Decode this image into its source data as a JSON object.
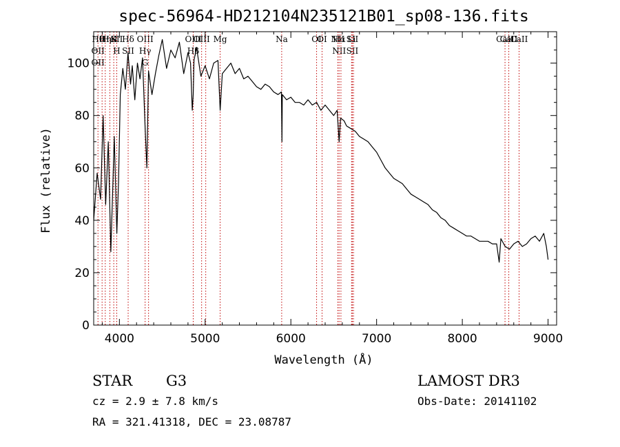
{
  "chart_data": {
    "type": "line",
    "title": "spec-56964-HD212104N235121B01_sp08-136.fits",
    "xlabel": "Wavelength (Å)",
    "ylabel": "Flux (relative)",
    "xlim": [
      3700,
      9100
    ],
    "ylim": [
      0,
      112
    ],
    "xticks": [
      4000,
      5000,
      6000,
      7000,
      8000,
      9000
    ],
    "yticks": [
      0,
      20,
      40,
      60,
      80,
      100
    ],
    "line_color": "#000000",
    "marker_color": "#c00000",
    "grid": false,
    "series": [
      {
        "name": "spectrum",
        "x": [
          3700,
          3740,
          3780,
          3810,
          3840,
          3870,
          3900,
          3940,
          3970,
          3990,
          4010,
          4040,
          4070,
          4100,
          4130,
          4150,
          4180,
          4210,
          4240,
          4270,
          4300,
          4320,
          4340,
          4380,
          4420,
          4460,
          4500,
          4550,
          4600,
          4650,
          4700,
          4750,
          4800,
          4830,
          4850,
          4861,
          4870,
          4900,
          4950,
          5000,
          5050,
          5100,
          5150,
          5175,
          5200,
          5250,
          5300,
          5350,
          5400,
          5450,
          5500,
          5550,
          5600,
          5650,
          5700,
          5750,
          5800,
          5850,
          5890,
          5896,
          5900,
          5950,
          6000,
          6050,
          6100,
          6150,
          6200,
          6250,
          6300,
          6350,
          6400,
          6450,
          6500,
          6540,
          6563,
          6580,
          6620,
          6650,
          6700,
          6750,
          6800,
          6850,
          6900,
          6950,
          7000,
          7050,
          7100,
          7150,
          7200,
          7250,
          7300,
          7350,
          7400,
          7450,
          7500,
          7550,
          7600,
          7650,
          7700,
          7750,
          7800,
          7850,
          7900,
          7950,
          8000,
          8050,
          8100,
          8150,
          8200,
          8250,
          8300,
          8350,
          8400,
          8430,
          8450,
          8500,
          8550,
          8600,
          8650,
          8700,
          8750,
          8800,
          8850,
          8900,
          8950,
          8980,
          9000
        ],
        "y": [
          40,
          58,
          48,
          80,
          46,
          70,
          28,
          72,
          35,
          55,
          88,
          98,
          90,
          104,
          92,
          99,
          86,
          100,
          94,
          102,
          75,
          60,
          97,
          88,
          96,
          103,
          109,
          98,
          105,
          102,
          108,
          96,
          104,
          100,
          82,
          88,
          101,
          106,
          95,
          99,
          94,
          100,
          101,
          82,
          96,
          98,
          100,
          96,
          98,
          94,
          95,
          93,
          91,
          90,
          92,
          91,
          89,
          88,
          89,
          70,
          88,
          86,
          87,
          85,
          85,
          84,
          86,
          84,
          85,
          82,
          84,
          82,
          80,
          82,
          70,
          79,
          78,
          76,
          75,
          74,
          72,
          71,
          70,
          68,
          66,
          63,
          60,
          58,
          56,
          55,
          54,
          52,
          50,
          49,
          48,
          47,
          46,
          44,
          43,
          41,
          40,
          38,
          37,
          36,
          35,
          34,
          34,
          33,
          32,
          32,
          32,
          31,
          31,
          24,
          33,
          30,
          29,
          31,
          32,
          30,
          31,
          33,
          34,
          32,
          35,
          30,
          25
        ]
      }
    ],
    "line_markers": [
      {
        "x": 3750,
        "labels": [
          "Hθ",
          "OII",
          "OII"
        ]
      },
      {
        "x": 3798,
        "labels": []
      },
      {
        "x": 3835,
        "labels": [
          "Hη"
        ]
      },
      {
        "x": 3889,
        "labels": [
          "HeI"
        ]
      },
      {
        "x": 3934,
        "labels": [
          "K"
        ]
      },
      {
        "x": 3969,
        "labels": [
          "SII",
          "H"
        ]
      },
      {
        "x": 4102,
        "labels": [
          "Hδ",
          "SII"
        ]
      },
      {
        "x": 4300,
        "labels": [
          "OIII",
          "Hγ",
          "G"
        ]
      },
      {
        "x": 4340,
        "labels": []
      },
      {
        "x": 4861,
        "labels": [
          "OIII",
          "Hβ"
        ]
      },
      {
        "x": 4959,
        "labels": [
          "OIII"
        ]
      },
      {
        "x": 5007,
        "labels": []
      },
      {
        "x": 5175,
        "labels": [
          "Mg"
        ]
      },
      {
        "x": 5893,
        "labels": [
          "Na"
        ]
      },
      {
        "x": 6300,
        "labels": [
          "OI"
        ]
      },
      {
        "x": 6364,
        "labels": [
          "OI"
        ]
      },
      {
        "x": 6548,
        "labels": [
          "NII"
        ]
      },
      {
        "x": 6563,
        "labels": [
          "Hα",
          "NII"
        ]
      },
      {
        "x": 6584,
        "labels": []
      },
      {
        "x": 6708,
        "labels": [
          "Li"
        ]
      },
      {
        "x": 6717,
        "labels": [
          "SII",
          "SII"
        ]
      },
      {
        "x": 6731,
        "labels": []
      },
      {
        "x": 8498,
        "labels": [
          "CaII"
        ]
      },
      {
        "x": 8542,
        "labels": [
          "CaII"
        ]
      },
      {
        "x": 8662,
        "labels": [
          "CaII"
        ]
      }
    ]
  },
  "info": {
    "object_class": "STAR",
    "subclass": "G3",
    "cz": "cz = 2.9 ± 7.8 km/s",
    "coords": "RA = 321.41318, DEC =  23.08787",
    "survey": "LAMOST DR3",
    "obs_date": "Obs-Date: 20141102"
  }
}
